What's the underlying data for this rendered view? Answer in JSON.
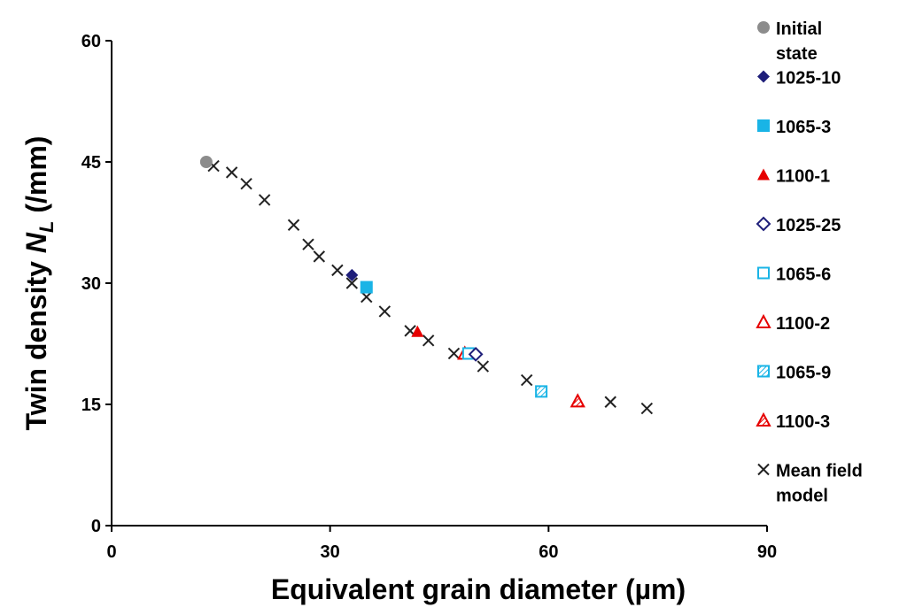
{
  "chart_data": {
    "type": "scatter",
    "xlabel": "Equivalent grain diameter (µm)",
    "ylabel": {
      "prefix": "Twin density ",
      "symbol": "N",
      "subscript": "L",
      "suffix": " (/mm)"
    },
    "xlim": [
      0,
      90
    ],
    "ylim": [
      0,
      60
    ],
    "xticks": [
      0,
      30,
      60,
      90
    ],
    "yticks": [
      0,
      15,
      30,
      45,
      60
    ],
    "grid": false,
    "legend_position": "right",
    "series": [
      {
        "name": "Initial state",
        "marker": "circle",
        "color": "#8c8c8c",
        "points": [
          [
            13,
            45
          ]
        ]
      },
      {
        "name": "1025-10",
        "marker": "diamond-filled",
        "color": "#1f1f7a",
        "points": [
          [
            33,
            31
          ]
        ]
      },
      {
        "name": "1065-3",
        "marker": "square-filled",
        "color": "#19b4e6",
        "points": [
          [
            35,
            29.5
          ]
        ]
      },
      {
        "name": "1100-1",
        "marker": "triangle-filled",
        "color": "#e60000",
        "points": [
          [
            42,
            24
          ]
        ]
      },
      {
        "name": "1025-25",
        "marker": "diamond-open",
        "color": "#1f1f7a",
        "points": [
          [
            50,
            21.2
          ]
        ]
      },
      {
        "name": "1065-6",
        "marker": "square-open",
        "color": "#19b4e6",
        "points": [
          [
            49,
            21.3
          ]
        ]
      },
      {
        "name": "1100-2",
        "marker": "triangle-open",
        "color": "#e60000",
        "points": [
          [
            48.5,
            21.3
          ]
        ]
      },
      {
        "name": "1065-9",
        "marker": "square-hatched",
        "color": "#19b4e6",
        "points": [
          [
            59,
            16.6
          ]
        ]
      },
      {
        "name": "1100-3",
        "marker": "triangle-hatched",
        "color": "#e60000",
        "points": [
          [
            64,
            15.4
          ]
        ]
      },
      {
        "name": "Mean field model",
        "marker": "x",
        "color": "#222222",
        "points": [
          [
            14,
            44.5
          ],
          [
            16.5,
            43.7
          ],
          [
            18.5,
            42.3
          ],
          [
            21,
            40.3
          ],
          [
            25,
            37.2
          ],
          [
            27,
            34.8
          ],
          [
            28.5,
            33.3
          ],
          [
            31,
            31.6
          ],
          [
            33,
            30
          ],
          [
            35,
            28.3
          ],
          [
            37.5,
            26.5
          ],
          [
            41,
            24.1
          ],
          [
            43.5,
            22.9
          ],
          [
            47,
            21.3
          ],
          [
            51,
            19.7
          ],
          [
            57,
            18
          ],
          [
            68.5,
            15.3
          ],
          [
            73.5,
            14.5
          ]
        ]
      }
    ]
  }
}
